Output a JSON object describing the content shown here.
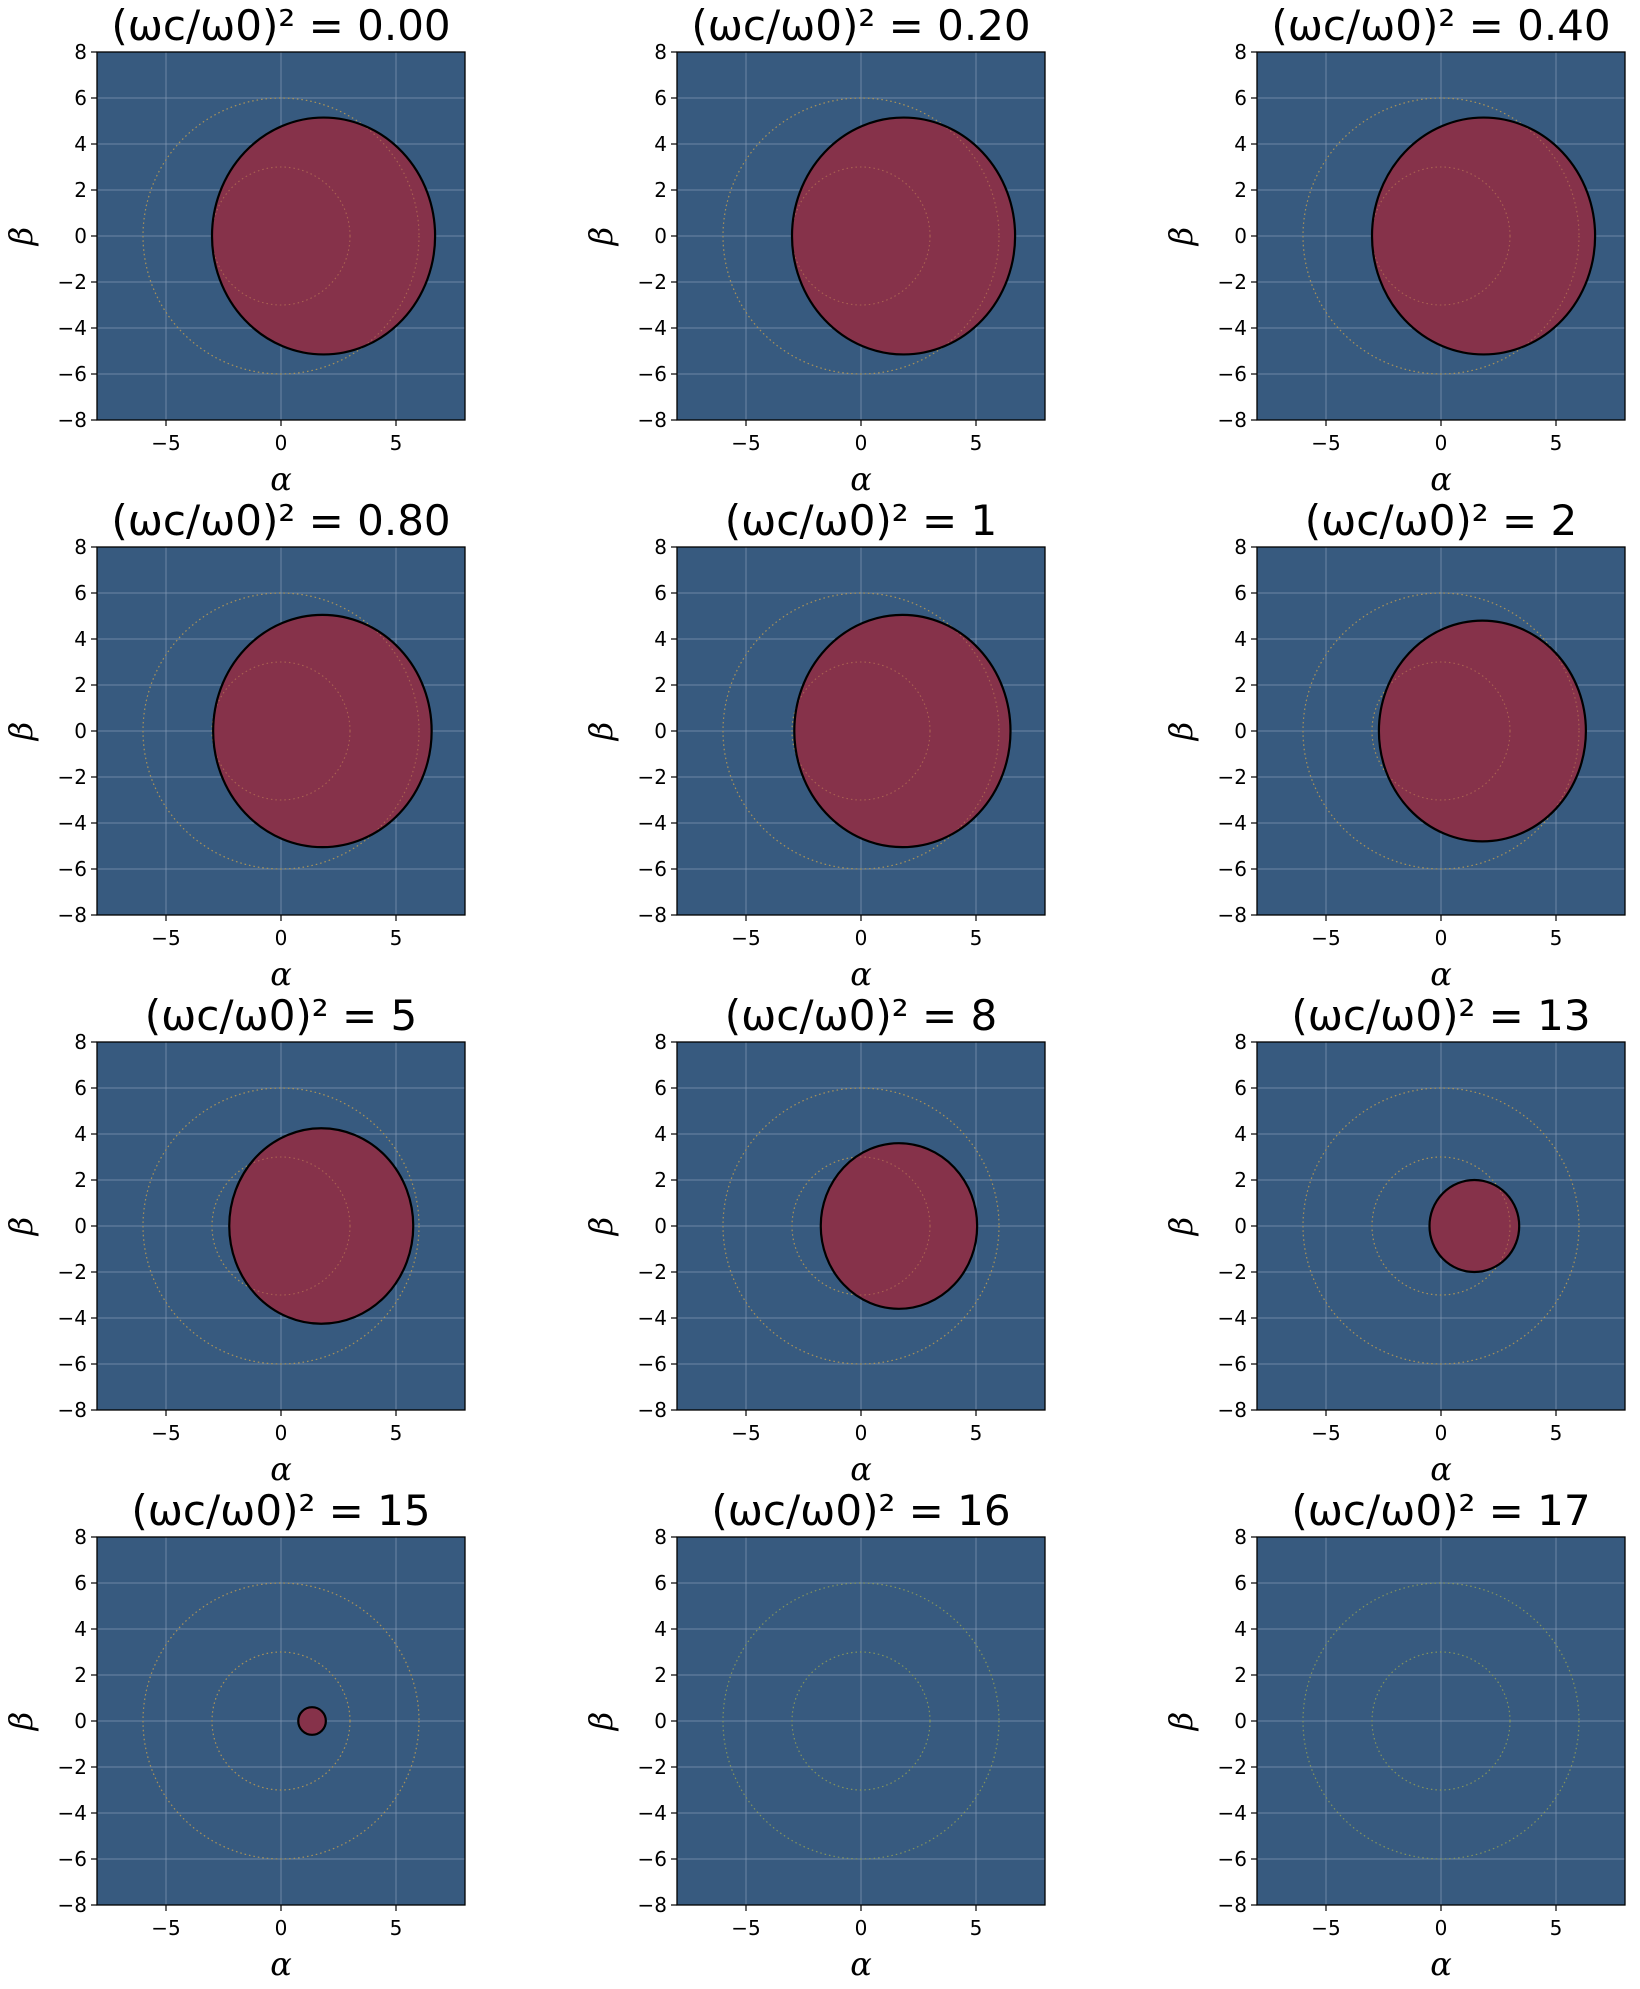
{
  "chart_data": [
    {
      "type": "scatter",
      "title": "(ωc/ω0)² = 0.00",
      "xlabel": "α",
      "ylabel": "β",
      "xlim": [
        -8,
        8
      ],
      "ylim": [
        -8,
        8
      ],
      "xticks": [
        -5,
        0,
        5
      ],
      "yticks": [
        -8,
        -6,
        -4,
        -2,
        0,
        2,
        4,
        6,
        8
      ],
      "grid": true,
      "ref_circles": [
        {
          "center": [
            0,
            0
          ],
          "radius": 3
        },
        {
          "center": [
            0,
            0
          ],
          "radius": 6
        }
      ],
      "region": {
        "center": [
          1.85,
          0
        ],
        "rx": 4.85,
        "ry": 5.15
      }
    },
    {
      "type": "scatter",
      "title": "(ωc/ω0)² = 0.20",
      "xlabel": "α",
      "ylabel": "β",
      "xlim": [
        -8,
        8
      ],
      "ylim": [
        -8,
        8
      ],
      "xticks": [
        -5,
        0,
        5
      ],
      "yticks": [
        -8,
        -6,
        -4,
        -2,
        0,
        2,
        4,
        6,
        8
      ],
      "grid": true,
      "ref_circles": [
        {
          "center": [
            0,
            0
          ],
          "radius": 3
        },
        {
          "center": [
            0,
            0
          ],
          "radius": 6
        }
      ],
      "region": {
        "center": [
          1.85,
          0
        ],
        "rx": 4.85,
        "ry": 5.15
      }
    },
    {
      "type": "scatter",
      "title": "(ωc/ω0)² = 0.40",
      "xlabel": "α",
      "ylabel": "β",
      "xlim": [
        -8,
        8
      ],
      "ylim": [
        -8,
        8
      ],
      "xticks": [
        -5,
        0,
        5
      ],
      "yticks": [
        -8,
        -6,
        -4,
        -2,
        0,
        2,
        4,
        6,
        8
      ],
      "grid": true,
      "ref_circles": [
        {
          "center": [
            0,
            0
          ],
          "radius": 3
        },
        {
          "center": [
            0,
            0
          ],
          "radius": 6
        }
      ],
      "region": {
        "center": [
          1.85,
          0
        ],
        "rx": 4.85,
        "ry": 5.15
      }
    },
    {
      "type": "scatter",
      "title": "(ωc/ω0)² = 0.80",
      "xlabel": "α",
      "ylabel": "β",
      "xlim": [
        -8,
        8
      ],
      "ylim": [
        -8,
        8
      ],
      "xticks": [
        -5,
        0,
        5
      ],
      "yticks": [
        -8,
        -6,
        -4,
        -2,
        0,
        2,
        4,
        6,
        8
      ],
      "grid": true,
      "ref_circles": [
        {
          "center": [
            0,
            0
          ],
          "radius": 3
        },
        {
          "center": [
            0,
            0
          ],
          "radius": 6
        }
      ],
      "region": {
        "center": [
          1.8,
          0
        ],
        "rx": 4.75,
        "ry": 5.05
      }
    },
    {
      "type": "scatter",
      "title": "(ωc/ω0)² = 1",
      "xlabel": "α",
      "ylabel": "β",
      "xlim": [
        -8,
        8
      ],
      "ylim": [
        -8,
        8
      ],
      "xticks": [
        -5,
        0,
        5
      ],
      "yticks": [
        -8,
        -6,
        -4,
        -2,
        0,
        2,
        4,
        6,
        8
      ],
      "grid": true,
      "ref_circles": [
        {
          "center": [
            0,
            0
          ],
          "radius": 3
        },
        {
          "center": [
            0,
            0
          ],
          "radius": 6
        }
      ],
      "region": {
        "center": [
          1.8,
          0
        ],
        "rx": 4.7,
        "ry": 5.05
      }
    },
    {
      "type": "scatter",
      "title": "(ωc/ω0)² = 2",
      "xlabel": "α",
      "ylabel": "β",
      "xlim": [
        -8,
        8
      ],
      "ylim": [
        -8,
        8
      ],
      "xticks": [
        -5,
        0,
        5
      ],
      "yticks": [
        -8,
        -6,
        -4,
        -2,
        0,
        2,
        4,
        6,
        8
      ],
      "grid": true,
      "ref_circles": [
        {
          "center": [
            0,
            0
          ],
          "radius": 3
        },
        {
          "center": [
            0,
            0
          ],
          "radius": 6
        }
      ],
      "region": {
        "center": [
          1.8,
          0
        ],
        "rx": 4.5,
        "ry": 4.8
      }
    },
    {
      "type": "scatter",
      "title": "(ωc/ω0)² = 5",
      "xlabel": "α",
      "ylabel": "β",
      "xlim": [
        -8,
        8
      ],
      "ylim": [
        -8,
        8
      ],
      "xticks": [
        -5,
        0,
        5
      ],
      "yticks": [
        -8,
        -6,
        -4,
        -2,
        0,
        2,
        4,
        6,
        8
      ],
      "grid": true,
      "ref_circles": [
        {
          "center": [
            0,
            0
          ],
          "radius": 3
        },
        {
          "center": [
            0,
            0
          ],
          "radius": 6
        }
      ],
      "region": {
        "center": [
          1.75,
          0
        ],
        "rx": 4.0,
        "ry": 4.25
      }
    },
    {
      "type": "scatter",
      "title": "(ωc/ω0)² = 8",
      "xlabel": "α",
      "ylabel": "β",
      "xlim": [
        -8,
        8
      ],
      "ylim": [
        -8,
        8
      ],
      "xticks": [
        -5,
        0,
        5
      ],
      "yticks": [
        -8,
        -6,
        -4,
        -2,
        0,
        2,
        4,
        6,
        8
      ],
      "grid": true,
      "ref_circles": [
        {
          "center": [
            0,
            0
          ],
          "radius": 3
        },
        {
          "center": [
            0,
            0
          ],
          "radius": 6
        }
      ],
      "region": {
        "center": [
          1.65,
          0
        ],
        "rx": 3.4,
        "ry": 3.6
      }
    },
    {
      "type": "scatter",
      "title": "(ωc/ω0)² = 13",
      "xlabel": "α",
      "ylabel": "β",
      "xlim": [
        -8,
        8
      ],
      "ylim": [
        -8,
        8
      ],
      "xticks": [
        -5,
        0,
        5
      ],
      "yticks": [
        -8,
        -6,
        -4,
        -2,
        0,
        2,
        4,
        6,
        8
      ],
      "grid": true,
      "ref_circles": [
        {
          "center": [
            0,
            0
          ],
          "radius": 3
        },
        {
          "center": [
            0,
            0
          ],
          "radius": 6
        }
      ],
      "region": {
        "center": [
          1.45,
          0
        ],
        "rx": 1.95,
        "ry": 2.0
      }
    },
    {
      "type": "scatter",
      "title": "(ωc/ω0)² = 15",
      "xlabel": "α",
      "ylabel": "β",
      "xlim": [
        -8,
        8
      ],
      "ylim": [
        -8,
        8
      ],
      "xticks": [
        -5,
        0,
        5
      ],
      "yticks": [
        -8,
        -6,
        -4,
        -2,
        0,
        2,
        4,
        6,
        8
      ],
      "grid": true,
      "ref_circles": [
        {
          "center": [
            0,
            0
          ],
          "radius": 3
        },
        {
          "center": [
            0,
            0
          ],
          "radius": 6
        }
      ],
      "region": {
        "center": [
          1.35,
          0
        ],
        "rx": 0.6,
        "ry": 0.6
      }
    },
    {
      "type": "scatter",
      "title": "(ωc/ω0)² = 16",
      "xlabel": "α",
      "ylabel": "β",
      "xlim": [
        -8,
        8
      ],
      "ylim": [
        -8,
        8
      ],
      "xticks": [
        -5,
        0,
        5
      ],
      "yticks": [
        -8,
        -6,
        -4,
        -2,
        0,
        2,
        4,
        6,
        8
      ],
      "grid": true,
      "ref_circles": [
        {
          "center": [
            0,
            0
          ],
          "radius": 3
        },
        {
          "center": [
            0,
            0
          ],
          "radius": 6
        }
      ],
      "region": null
    },
    {
      "type": "scatter",
      "title": "(ωc/ω0)² = 17",
      "xlabel": "α",
      "ylabel": "β",
      "xlim": [
        -8,
        8
      ],
      "ylim": [
        -8,
        8
      ],
      "xticks": [
        -5,
        0,
        5
      ],
      "yticks": [
        -8,
        -6,
        -4,
        -2,
        0,
        2,
        4,
        6,
        8
      ],
      "grid": true,
      "ref_circles": [
        {
          "center": [
            0,
            0
          ],
          "radius": 3
        },
        {
          "center": [
            0,
            0
          ],
          "radius": 6
        }
      ],
      "region": null
    }
  ],
  "colors": {
    "background": "#375a7f",
    "region_fill": "#86324a",
    "region_edge": "#000000",
    "ref_circle": "#8c9a5a",
    "grid": "#8fa3bc"
  }
}
